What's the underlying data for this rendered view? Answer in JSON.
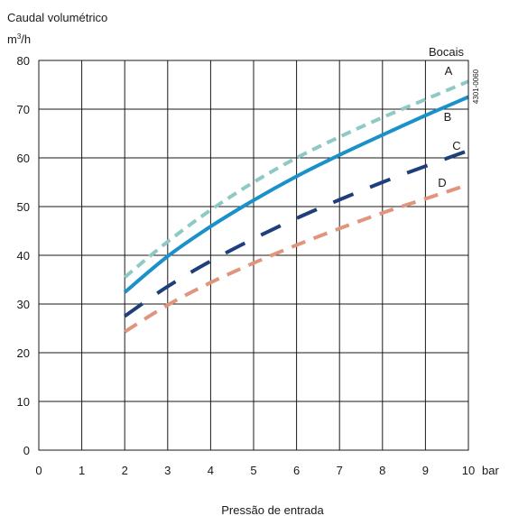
{
  "chart_data": {
    "type": "line",
    "ylabel": "Caudal volumétrico",
    "yunit_base": "m",
    "yunit_sup": "3",
    "yunit_tail": "/h",
    "xlabel": "Pressão de entrada",
    "xunit": "bar",
    "legend_title": "Bocais",
    "figure_code": "4301-0060",
    "xlim": [
      0,
      10
    ],
    "ylim": [
      0,
      80
    ],
    "x_ticks": [
      "0",
      "1",
      "2",
      "3",
      "4",
      "5",
      "6",
      "7",
      "8",
      "9",
      "10"
    ],
    "y_ticks": [
      "0",
      "10",
      "20",
      "30",
      "40",
      "50",
      "60",
      "70",
      "80"
    ],
    "grid": true,
    "x": [
      2,
      3,
      4,
      5,
      6,
      7,
      8,
      9,
      10
    ],
    "series": [
      {
        "name": "A",
        "color": "#8ec9c4",
        "style": "short-dash",
        "values": [
          35.5,
          42.8,
          49.3,
          55.0,
          60.0,
          64.3,
          68.3,
          72.0,
          75.7
        ]
      },
      {
        "name": "B",
        "color": "#1a91c9",
        "style": "solid",
        "values": [
          32.4,
          39.8,
          45.9,
          51.3,
          56.2,
          60.6,
          64.7,
          68.7,
          72.5
        ]
      },
      {
        "name": "C",
        "color": "#1e3f7c",
        "style": "long-dash",
        "values": [
          27.5,
          33.6,
          38.8,
          43.4,
          47.6,
          51.4,
          55.0,
          58.3,
          61.5
        ]
      },
      {
        "name": "D",
        "color": "#e0957c",
        "style": "dash",
        "values": [
          24.3,
          29.8,
          34.4,
          38.4,
          42.1,
          45.5,
          48.7,
          51.6,
          54.5
        ]
      }
    ]
  }
}
